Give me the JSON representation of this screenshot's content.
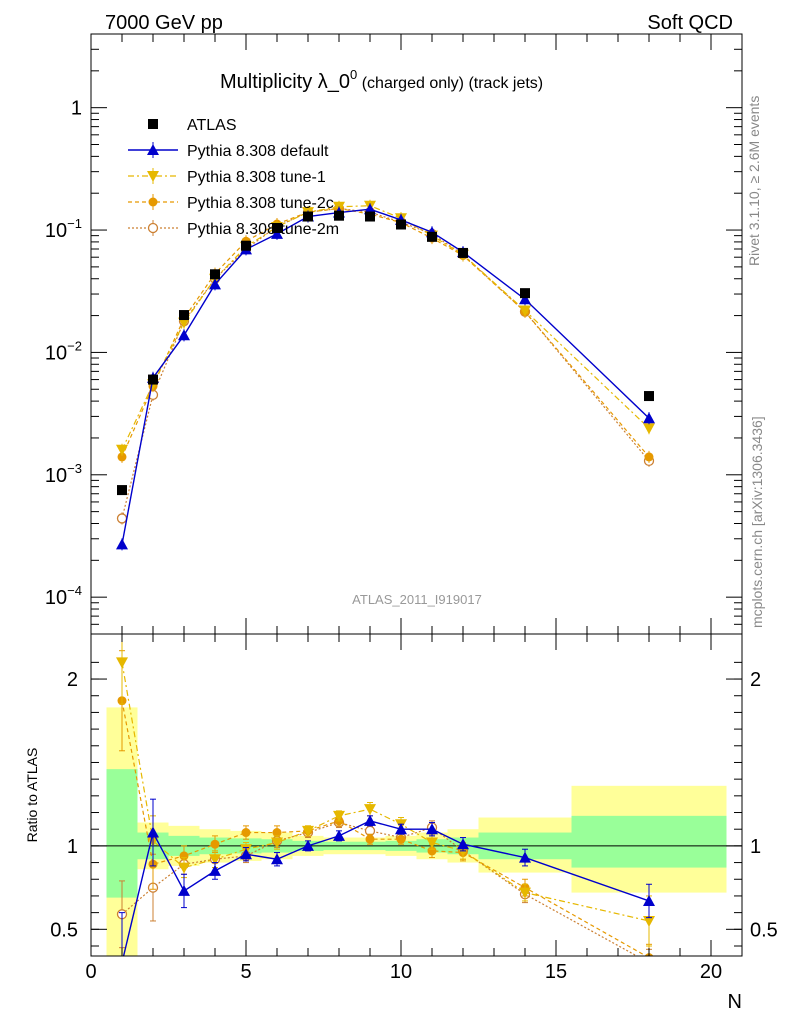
{
  "header": {
    "left": "7000 GeV pp",
    "right": "Soft QCD"
  },
  "side_labels": {
    "rivet": "Rivet 3.1.10, ≥ 2.6M events",
    "mcplots": "mcplots.cern.ch [arXiv:1306.3436]"
  },
  "colors": {
    "atlas": "#000000",
    "default": "#0000cc",
    "tune1": "#e6b800",
    "tune2c": "#e69900",
    "tune2m": "#cc8033",
    "green_band": "#99ff99",
    "yellow_band": "#ffff99"
  },
  "chart_data": [
    {
      "type": "scatter",
      "scale": "log",
      "title": {
        "main": "Multiplicity λ_0",
        "sup": "0",
        "tail": " (charged only) (track jets)"
      },
      "watermark": "ATLAS_2011_I919017",
      "xlim": [
        0,
        21
      ],
      "ylim": [
        5e-05,
        4
      ],
      "y_ticks": [
        {
          "value": 1,
          "label": "1"
        },
        {
          "value": 0.1,
          "base": "10",
          "exp": "−1"
        },
        {
          "value": 0.01,
          "base": "10",
          "exp": "−2"
        },
        {
          "value": 0.001,
          "base": "10",
          "exp": "−3"
        },
        {
          "value": 0.0001,
          "base": "10",
          "exp": "−4"
        }
      ],
      "legend_position": "top-left",
      "series": [
        {
          "name": "ATLAS",
          "style": "data",
          "color": "#000000",
          "x": [
            1,
            2,
            3,
            4,
            5,
            6,
            7,
            8,
            9,
            10,
            11,
            12,
            14,
            18
          ],
          "y": [
            0.00075,
            0.006,
            0.0202,
            0.0435,
            0.0745,
            0.104,
            0.129,
            0.131,
            0.129,
            0.111,
            0.088,
            0.065,
            0.0305,
            0.0044
          ]
        },
        {
          "name": "Pythia 8.308 default",
          "style": "triangle-up",
          "color": "#0000cc",
          "x": [
            1,
            2,
            3,
            4,
            5,
            6,
            7,
            8,
            9,
            10,
            11,
            12,
            14,
            18
          ],
          "y": [
            0.00027,
            0.0062,
            0.0138,
            0.036,
            0.0695,
            0.093,
            0.129,
            0.139,
            0.148,
            0.121,
            0.096,
            0.066,
            0.0272,
            0.0029
          ]
        },
        {
          "name": "Pythia 8.308 tune-1",
          "style": "triangle-down",
          "color": "#e6b800",
          "x": [
            1,
            2,
            3,
            4,
            5,
            6,
            7,
            8,
            9,
            10,
            11,
            12,
            14,
            18
          ],
          "y": [
            0.0016,
            0.0055,
            0.0175,
            0.04,
            0.073,
            0.106,
            0.14,
            0.155,
            0.158,
            0.125,
            0.09,
            0.063,
            0.022,
            0.0024
          ]
        },
        {
          "name": "Pythia 8.308 tune-2c",
          "style": "circle",
          "color": "#e69900",
          "x": [
            1,
            2,
            3,
            4,
            5,
            6,
            7,
            8,
            9,
            10,
            11,
            12,
            14,
            18
          ],
          "y": [
            0.0014,
            0.0053,
            0.019,
            0.044,
            0.081,
            0.112,
            0.14,
            0.15,
            0.135,
            0.115,
            0.086,
            0.062,
            0.0215,
            0.0014
          ]
        },
        {
          "name": "Pythia 8.308 tune-2m",
          "style": "open-circle",
          "color": "#cc8033",
          "x": [
            1,
            2,
            3,
            4,
            5,
            6,
            7,
            8,
            9,
            10,
            11,
            12,
            14,
            18
          ],
          "y": [
            0.00044,
            0.0045,
            0.018,
            0.04,
            0.07,
            0.107,
            0.14,
            0.15,
            0.14,
            0.116,
            0.093,
            0.063,
            0.0215,
            0.0013
          ]
        }
      ]
    },
    {
      "type": "scatter",
      "scale": "linear",
      "ylabel": "Ratio to ATLAS",
      "xlabel": "N",
      "xlim": [
        0,
        21
      ],
      "ylim": [
        0.34,
        2.27
      ],
      "x_ticks": [
        0,
        5,
        10,
        15,
        20
      ],
      "y_ticks": [
        {
          "value": 0.5,
          "label": "0.5"
        },
        {
          "value": 1,
          "label": "1"
        },
        {
          "value": 2,
          "label": "2"
        }
      ],
      "bands": [
        {
          "x": [
            0.5,
            1.5
          ],
          "green": [
            0.69,
            1.46
          ],
          "yellow": [
            0.3,
            1.83
          ]
        },
        {
          "x": [
            1.5,
            2.5
          ],
          "green": [
            0.92,
            1.08
          ],
          "yellow": [
            0.86,
            1.14
          ]
        },
        {
          "x": [
            2.5,
            3.5
          ],
          "green": [
            0.94,
            1.06
          ],
          "yellow": [
            0.88,
            1.12
          ]
        },
        {
          "x": [
            3.5,
            4.5
          ],
          "green": [
            0.95,
            1.05
          ],
          "yellow": [
            0.9,
            1.1
          ]
        },
        {
          "x": [
            4.5,
            5.5
          ],
          "green": [
            0.955,
            1.045
          ],
          "yellow": [
            0.91,
            1.09
          ]
        },
        {
          "x": [
            5.5,
            6.5
          ],
          "green": [
            0.96,
            1.04
          ],
          "yellow": [
            0.92,
            1.08
          ]
        },
        {
          "x": [
            6.5,
            7.5
          ],
          "green": [
            0.97,
            1.03
          ],
          "yellow": [
            0.94,
            1.06
          ]
        },
        {
          "x": [
            7.5,
            8.5
          ],
          "green": [
            0.975,
            1.025
          ],
          "yellow": [
            0.95,
            1.05
          ]
        },
        {
          "x": [
            8.5,
            9.5
          ],
          "green": [
            0.975,
            1.025
          ],
          "yellow": [
            0.95,
            1.05
          ]
        },
        {
          "x": [
            9.5,
            10.5
          ],
          "green": [
            0.97,
            1.03
          ],
          "yellow": [
            0.94,
            1.06
          ]
        },
        {
          "x": [
            10.5,
            11.5
          ],
          "green": [
            0.96,
            1.04
          ],
          "yellow": [
            0.92,
            1.08
          ]
        },
        {
          "x": [
            11.5,
            12.5
          ],
          "green": [
            0.95,
            1.05
          ],
          "yellow": [
            0.9,
            1.1
          ]
        },
        {
          "x": [
            12.5,
            15.5
          ],
          "green": [
            0.92,
            1.08
          ],
          "yellow": [
            0.84,
            1.17
          ]
        },
        {
          "x": [
            15.5,
            20.5
          ],
          "green": [
            0.87,
            1.18
          ],
          "yellow": [
            0.72,
            1.36
          ]
        }
      ],
      "series": [
        {
          "name": "Pythia 8.308 default",
          "style": "triangle-up",
          "color": "#0000cc",
          "x": [
            1,
            2,
            3,
            4,
            5,
            6,
            7,
            8,
            9,
            10,
            11,
            12,
            14,
            18
          ],
          "y": [
            0.3,
            1.08,
            0.73,
            0.85,
            0.95,
            0.92,
            1.0,
            1.06,
            1.15,
            1.1,
            1.1,
            1.01,
            0.93,
            0.67
          ],
          "err": [
            0.3,
            0.2,
            0.1,
            0.05,
            0.04,
            0.04,
            0.03,
            0.03,
            0.03,
            0.03,
            0.04,
            0.04,
            0.05,
            0.1
          ]
        },
        {
          "name": "Pythia 8.308 tune-1",
          "style": "triangle-down",
          "color": "#e6b800",
          "x": [
            1,
            2,
            3,
            4,
            5,
            6,
            7,
            8,
            9,
            10,
            11,
            12,
            14,
            18
          ],
          "y": [
            2.1,
            1.03,
            0.87,
            0.92,
            0.98,
            1.02,
            1.09,
            1.18,
            1.22,
            1.13,
            1.02,
            0.97,
            0.72,
            0.55
          ],
          "err": [
            0.25,
            0.15,
            0.06,
            0.05,
            0.04,
            0.04,
            0.03,
            0.03,
            0.04,
            0.04,
            0.04,
            0.05,
            0.05,
            0.15
          ]
        },
        {
          "name": "Pythia 8.308 tune-2c",
          "style": "circle",
          "color": "#e69900",
          "x": [
            1,
            2,
            3,
            4,
            5,
            6,
            7,
            8,
            9,
            10,
            11,
            12,
            14,
            18
          ],
          "y": [
            1.87,
            0.89,
            0.94,
            1.01,
            1.08,
            1.08,
            1.09,
            1.15,
            1.04,
            1.04,
            0.97,
            0.96,
            0.75,
            0.33
          ],
          "err": [
            0.3,
            0.15,
            0.06,
            0.05,
            0.04,
            0.04,
            0.03,
            0.03,
            0.03,
            0.03,
            0.04,
            0.05,
            0.05,
            0.08
          ]
        },
        {
          "name": "Pythia 8.308 tune-2m",
          "style": "open-circle",
          "color": "#cc8033",
          "x": [
            1,
            2,
            3,
            4,
            5,
            6,
            7,
            8,
            9,
            10,
            11,
            12,
            14,
            18
          ],
          "y": [
            0.59,
            0.75,
            0.89,
            0.92,
            0.94,
            1.03,
            1.08,
            1.14,
            1.09,
            1.05,
            1.11,
            0.97,
            0.71,
            0.3
          ],
          "err": [
            0.2,
            0.2,
            0.06,
            0.05,
            0.04,
            0.04,
            0.03,
            0.03,
            0.03,
            0.03,
            0.04,
            0.05,
            0.05,
            0.08
          ]
        }
      ]
    }
  ]
}
